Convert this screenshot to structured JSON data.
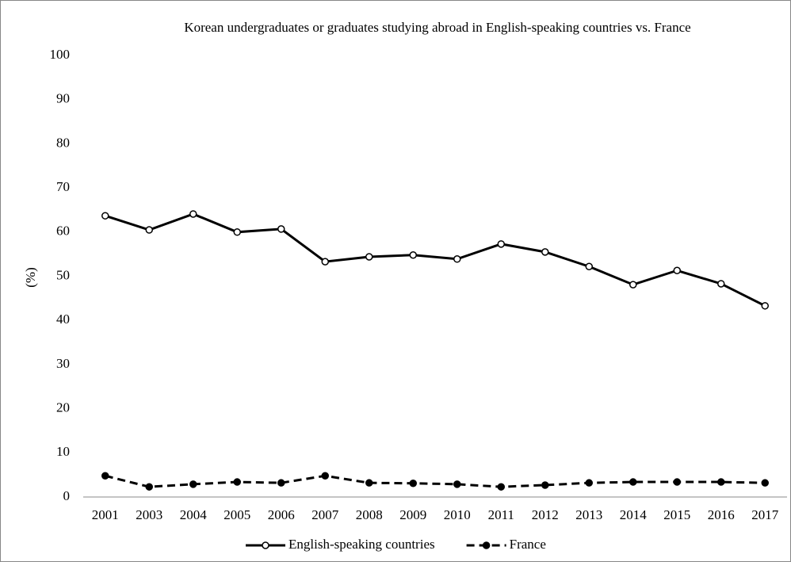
{
  "chart_data": {
    "type": "line",
    "title": "Korean undergraduates or graduates studying abroad in English-speaking countries vs. France",
    "y_label": "(%)",
    "categories": [
      "2001",
      "2003",
      "2004",
      "2005",
      "2006",
      "2007",
      "2008",
      "2009",
      "2010",
      "2011",
      "2012",
      "2013",
      "2014",
      "2015",
      "2016",
      "2017"
    ],
    "series": [
      {
        "name": "English-speaking countries",
        "color": "#000000",
        "dash": "solid",
        "marker": "open",
        "values": [
          63.7,
          60.5,
          64.1,
          60.0,
          60.7,
          53.3,
          54.4,
          54.8,
          53.9,
          57.3,
          55.5,
          52.2,
          48.1,
          51.3,
          48.3,
          43.3
        ]
      },
      {
        "name": "France",
        "color": "#000000",
        "dash": "dashed",
        "marker": "filled",
        "values": [
          4.8,
          2.3,
          2.9,
          3.4,
          3.2,
          4.8,
          3.2,
          3.1,
          2.9,
          2.3,
          2.7,
          3.2,
          3.4,
          3.4,
          3.4,
          3.2
        ]
      }
    ],
    "ylim": [
      0,
      100
    ],
    "yticks": [
      0,
      10,
      20,
      30,
      40,
      50,
      60,
      70,
      80,
      90,
      100
    ],
    "grid": false,
    "legend": "bottom"
  }
}
